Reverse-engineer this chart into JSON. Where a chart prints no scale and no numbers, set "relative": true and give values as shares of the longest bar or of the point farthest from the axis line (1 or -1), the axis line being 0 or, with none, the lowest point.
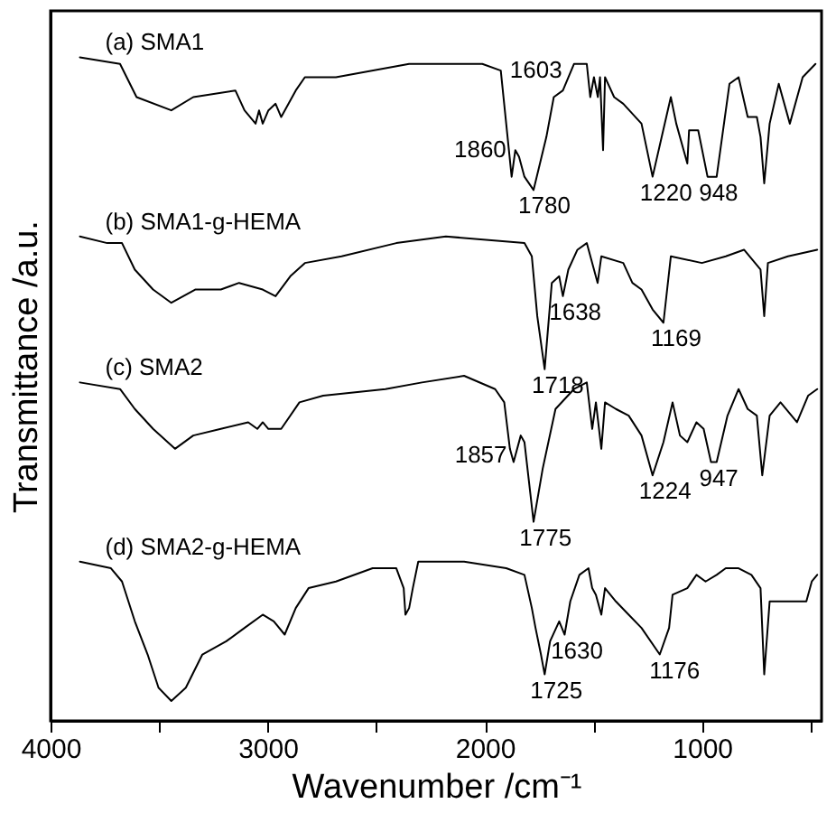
{
  "chart_data": {
    "type": "line",
    "relative": true,
    "xlabel": "Wavenumber /cm⁻¹",
    "ylabel": "Transmittance /a.u.",
    "xlim": [
      4000,
      450
    ],
    "xticks": [
      4000,
      3000,
      2000,
      1000,
      {
        "value": 3500,
        "label": null
      },
      {
        "value": 2500,
        "label": null
      },
      {
        "value": 1500,
        "label": null
      },
      {
        "value": 500,
        "label": null
      }
    ],
    "marker": "none",
    "line_style": "solid",
    "series": [
      {
        "name": "(a) SMA1",
        "color": "#000000",
        "x": [
          3865,
          3680,
          3604,
          3444,
          3343,
          3149,
          3107,
          3056,
          3040,
          3023,
          2997,
          2964,
          2938,
          2871,
          2829,
          2686,
          2349,
          2096,
          2012,
          1927,
          1877,
          1860,
          1843,
          1818,
          1776,
          1717,
          1683,
          1641,
          1590,
          1531,
          1515,
          1498,
          1480,
          1470,
          1456,
          1447,
          1405,
          1363,
          1279,
          1228,
          1186,
          1144,
          1119,
          1068,
          1060,
          1018,
          975,
          933,
          874,
          832,
          790,
          748,
          731,
          714,
          689,
          647,
          596,
          537,
          478
        ],
        "values": [
          1.0,
          0.99,
          0.94,
          0.92,
          0.94,
          0.95,
          0.92,
          0.9,
          0.92,
          0.9,
          0.92,
          0.93,
          0.91,
          0.95,
          0.97,
          0.97,
          0.99,
          0.99,
          0.99,
          0.98,
          0.82,
          0.86,
          0.85,
          0.82,
          0.8,
          0.88,
          0.94,
          0.95,
          0.99,
          0.99,
          0.94,
          0.97,
          0.94,
          0.97,
          0.86,
          0.97,
          0.94,
          0.93,
          0.9,
          0.82,
          0.88,
          0.94,
          0.9,
          0.84,
          0.89,
          0.89,
          0.82,
          0.82,
          0.96,
          0.97,
          0.91,
          0.91,
          0.88,
          0.81,
          0.9,
          0.96,
          0.9,
          0.97,
          0.99
        ]
      },
      {
        "name": "(b) SMA1-g-HEMA",
        "color": "#000000",
        "x": [
          3865,
          3739,
          3671,
          3612,
          3528,
          3444,
          3334,
          3216,
          3132,
          3023,
          2964,
          2896,
          2829,
          2660,
          2408,
          2180,
          1818,
          1784,
          1759,
          1725,
          1692,
          1658,
          1641,
          1616,
          1574,
          1531,
          1481,
          1464,
          1363,
          1321,
          1279,
          1228,
          1178,
          1144,
          1001,
          891,
          807,
          731,
          714,
          697,
          605,
          470
        ],
        "values": [
          0.73,
          0.72,
          0.72,
          0.68,
          0.65,
          0.63,
          0.65,
          0.65,
          0.66,
          0.65,
          0.64,
          0.67,
          0.69,
          0.7,
          0.72,
          0.73,
          0.72,
          0.7,
          0.61,
          0.53,
          0.66,
          0.67,
          0.64,
          0.68,
          0.71,
          0.72,
          0.66,
          0.7,
          0.69,
          0.66,
          0.65,
          0.62,
          0.6,
          0.7,
          0.69,
          0.7,
          0.71,
          0.68,
          0.61,
          0.69,
          0.7,
          0.71
        ]
      },
      {
        "name": "(c) SMA2",
        "color": "#000000",
        "x": [
          3865,
          3680,
          3612,
          3528,
          3427,
          3343,
          3216,
          3090,
          3048,
          3023,
          2997,
          2938,
          2854,
          2745,
          2458,
          2290,
          2096,
          1953,
          1911,
          1885,
          1868,
          1835,
          1818,
          1776,
          1734,
          1675,
          1590,
          1531,
          1506,
          1489,
          1464,
          1447,
          1397,
          1338,
          1279,
          1228,
          1178,
          1136,
          1102,
          1068,
          1026,
          993,
          959,
          933,
          883,
          832,
          790,
          748,
          723,
          689,
          639,
          563,
          512,
          470
        ],
        "values": [
          0.51,
          0.5,
          0.47,
          0.44,
          0.41,
          0.43,
          0.44,
          0.45,
          0.44,
          0.45,
          0.44,
          0.44,
          0.48,
          0.49,
          0.5,
          0.51,
          0.52,
          0.5,
          0.48,
          0.41,
          0.39,
          0.43,
          0.42,
          0.3,
          0.38,
          0.47,
          0.5,
          0.51,
          0.44,
          0.48,
          0.41,
          0.48,
          0.47,
          0.46,
          0.43,
          0.37,
          0.42,
          0.48,
          0.43,
          0.42,
          0.45,
          0.44,
          0.39,
          0.39,
          0.46,
          0.5,
          0.47,
          0.46,
          0.37,
          0.46,
          0.48,
          0.45,
          0.49,
          0.5
        ]
      },
      {
        "name": "(d) SMA2-g-HEMA",
        "color": "#000000",
        "x": [
          3865,
          3722,
          3671,
          3612,
          3553,
          3503,
          3444,
          3377,
          3301,
          3191,
          3107,
          3023,
          2972,
          2922,
          2871,
          2812,
          2686,
          2517,
          2408,
          2374,
          2366,
          2349,
          2332,
          2307,
          2096,
          1902,
          1818,
          1784,
          1767,
          1742,
          1725,
          1700,
          1658,
          1633,
          1607,
          1565,
          1523,
          1506,
          1489,
          1464,
          1447,
          1397,
          1338,
          1279,
          1195,
          1152,
          1136,
          1068,
          1026,
          984,
          933,
          891,
          832,
          773,
          731,
          714,
          689,
          605,
          520,
          495,
          470
        ],
        "values": [
          0.24,
          0.23,
          0.21,
          0.15,
          0.1,
          0.05,
          0.03,
          0.05,
          0.1,
          0.12,
          0.14,
          0.16,
          0.15,
          0.13,
          0.17,
          0.2,
          0.21,
          0.23,
          0.23,
          0.2,
          0.16,
          0.17,
          0.2,
          0.24,
          0.24,
          0.23,
          0.22,
          0.17,
          0.14,
          0.1,
          0.07,
          0.12,
          0.15,
          0.13,
          0.18,
          0.22,
          0.23,
          0.2,
          0.19,
          0.16,
          0.2,
          0.18,
          0.16,
          0.14,
          0.1,
          0.14,
          0.19,
          0.2,
          0.22,
          0.21,
          0.22,
          0.23,
          0.23,
          0.22,
          0.2,
          0.07,
          0.18,
          0.18,
          0.18,
          0.21,
          0.22
        ]
      }
    ],
    "annotations": [
      {
        "text": "1860",
        "x": 1860,
        "y": 0.86
      },
      {
        "text": "1603",
        "x": 1603,
        "y": 0.98
      },
      {
        "text": "1780",
        "x": 1780,
        "y": 0.8
      },
      {
        "text": "1220",
        "x": 1220,
        "y": 0.83
      },
      {
        "text": "948",
        "x": 948,
        "y": 0.82
      },
      {
        "text": "1638",
        "x": 1638,
        "y": 0.64
      },
      {
        "text": "1169",
        "x": 1169,
        "y": 0.63
      },
      {
        "text": "1718",
        "x": 1718,
        "y": 0.56
      },
      {
        "text": "1857",
        "x": 1857,
        "y": 0.4
      },
      {
        "text": "1775",
        "x": 1775,
        "y": 0.3
      },
      {
        "text": "1224",
        "x": 1224,
        "y": 0.38
      },
      {
        "text": "947",
        "x": 947,
        "y": 0.39
      },
      {
        "text": "1630",
        "x": 1630,
        "y": 0.14
      },
      {
        "text": "1725",
        "x": 1725,
        "y": 0.07
      },
      {
        "text": "1176",
        "x": 1176,
        "y": 0.12
      }
    ]
  }
}
